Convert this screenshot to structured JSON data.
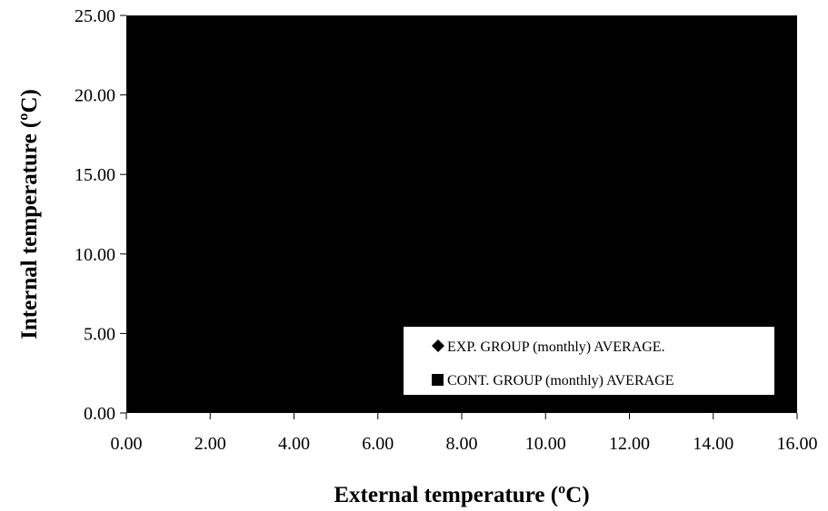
{
  "chart_data": {
    "type": "scatter",
    "xlabel": "External temperature (ºC)",
    "ylabel": "Internal temperature (ºC)",
    "xlim": [
      0,
      16
    ],
    "ylim": [
      0,
      25
    ],
    "x_ticks": [
      "0.00",
      "2.00",
      "4.00",
      "6.00",
      "8.00",
      "10.00",
      "12.00",
      "14.00",
      "16.00"
    ],
    "y_ticks": [
      "0.00",
      "5.00",
      "10.00",
      "15.00",
      "20.00",
      "25.00"
    ],
    "plot_background": "#000000",
    "grid": false,
    "legend_position": "bottom-right",
    "series": [
      {
        "name": "EXP. GROUP (monthly) AVERAGE.",
        "marker": "diamond",
        "color": "#000000",
        "points": []
      },
      {
        "name": "CONT. GROUP (monthly) AVERAGE",
        "marker": "square",
        "color": "#000000",
        "points": []
      }
    ]
  }
}
